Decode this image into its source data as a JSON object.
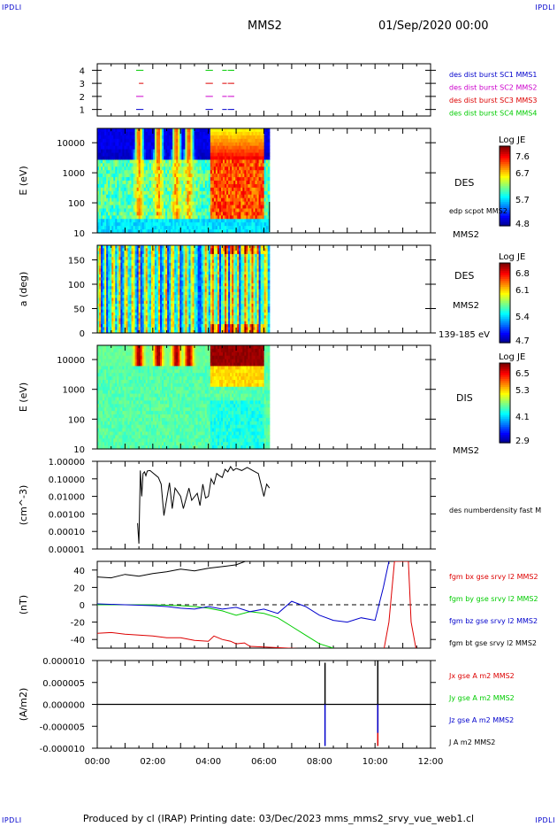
{
  "corner_label": "IPDLI",
  "header": {
    "spacecraft": "MMS2",
    "date": "01/Sep/2020 00:00"
  },
  "footer": "Produced by cl (IRAP)   Printing date: 03/Dec/2023   mms_mms2_srvy_vue_web1.cl",
  "colors": {
    "c1": "#0000cc",
    "c2": "#cc00cc",
    "c3": "#dd0000",
    "c4": "#00cc00",
    "black": "#000000"
  },
  "chart_data": [
    {
      "type": "line",
      "name": "burst-availability",
      "ylim": [
        0.5,
        4.5
      ],
      "yticks": [
        "1",
        "2",
        "3",
        "4"
      ],
      "legend": [
        {
          "label": "des dist burst SC1 MMS1",
          "color": "#0000cc"
        },
        {
          "label": "des dist burst SC2 MMS2",
          "color": "#cc00cc"
        },
        {
          "label": "des dist burst SC3 MMS3",
          "color": "#dd0000"
        },
        {
          "label": "des dist burst SC4 MMS4",
          "color": "#00cc00"
        }
      ],
      "segments": [
        {
          "level": 4,
          "color": "#00cc00",
          "spans": [
            [
              1.4,
              1.6
            ],
            [
              3.9,
              4.1
            ],
            [
              4.5,
              4.6
            ],
            [
              4.7,
              4.8
            ],
            [
              4.85,
              4.87
            ]
          ]
        },
        {
          "level": 3,
          "color": "#dd0000",
          "spans": [
            [
              1.5,
              1.6
            ],
            [
              3.9,
              4.1
            ],
            [
              4.5,
              4.6
            ],
            [
              4.7,
              4.8
            ],
            [
              4.85,
              4.87
            ]
          ]
        },
        {
          "level": 2,
          "color": "#cc00cc",
          "spans": [
            [
              1.4,
              1.6
            ],
            [
              3.9,
              4.1
            ],
            [
              4.5,
              4.6
            ],
            [
              4.7,
              4.8
            ],
            [
              4.85,
              4.87
            ]
          ]
        },
        {
          "level": 1,
          "color": "#0000cc",
          "spans": [
            [
              1.4,
              1.6
            ],
            [
              3.9,
              4.1
            ],
            [
              4.5,
              4.6
            ],
            [
              4.7,
              4.8
            ],
            [
              4.85,
              4.87
            ]
          ]
        }
      ]
    },
    {
      "type": "heatmap",
      "name": "des-energy-spectrogram",
      "ylabel": "E (eV)",
      "scale": "log",
      "ylim": [
        10,
        30000
      ],
      "yticks": [
        "10",
        "100",
        "1000",
        "10000"
      ],
      "right_labels": [
        "DES",
        "edp scpot MMS2",
        "MMS2"
      ],
      "colorbar": {
        "title": "Log JE",
        "ticks": [
          "7.6",
          "6.7",
          "5.7",
          "4.8"
        ]
      },
      "xlim_hours": [
        0,
        6.2
      ]
    },
    {
      "type": "heatmap",
      "name": "des-pitch-angle",
      "ylabel": "a (deg)",
      "ylim": [
        0,
        180
      ],
      "yticks": [
        "0",
        "50",
        "100",
        "150"
      ],
      "right_labels": [
        "DES",
        "MMS2",
        "139-185 eV"
      ],
      "colorbar": {
        "title": "Log JE",
        "ticks": [
          "6.8",
          "6.1",
          "5.4",
          "4.7"
        ]
      },
      "xlim_hours": [
        0,
        6.2
      ]
    },
    {
      "type": "heatmap",
      "name": "dis-energy-spectrogram",
      "ylabel": "E (eV)",
      "scale": "log",
      "ylim": [
        10,
        30000
      ],
      "yticks": [
        "10",
        "100",
        "1000",
        "10000"
      ],
      "right_labels": [
        "DIS",
        "MMS2"
      ],
      "colorbar": {
        "title": "Log JE",
        "ticks": [
          "6.5",
          "5.3",
          "4.1",
          "2.9"
        ]
      },
      "xlim_hours": [
        0,
        6.2
      ]
    },
    {
      "type": "line",
      "name": "electron-density",
      "ylabel": "(cm^-3)",
      "scale": "log",
      "ylim": [
        1e-05,
        1
      ],
      "yticks": [
        "0.00001",
        "0.00010",
        "0.00100",
        "0.01000",
        "0.10000",
        "1.00000"
      ],
      "legend": [
        {
          "label": "des numberdensity fast M",
          "color": "#000000"
        }
      ],
      "x": [
        1.45,
        1.5,
        1.55,
        1.6,
        1.65,
        1.7,
        1.75,
        1.8,
        1.9,
        2.2,
        2.3,
        2.4,
        2.6,
        2.7,
        2.8,
        3.0,
        3.1,
        3.3,
        3.4,
        3.6,
        3.7,
        3.8,
        3.9,
        4.0,
        4.1,
        4.2,
        4.3,
        4.4,
        4.5,
        4.6,
        4.7,
        4.8,
        4.9,
        5.0,
        5.2,
        5.4,
        5.6,
        5.8,
        6.0,
        6.1,
        6.2
      ],
      "y": [
        0.0003,
        2e-05,
        0.3,
        0.01,
        0.2,
        0.25,
        0.15,
        0.28,
        0.3,
        0.12,
        0.05,
        0.0008,
        0.06,
        0.002,
        0.03,
        0.01,
        0.002,
        0.03,
        0.006,
        0.015,
        0.003,
        0.05,
        0.008,
        0.01,
        0.1,
        0.05,
        0.2,
        0.15,
        0.12,
        0.35,
        0.25,
        0.5,
        0.3,
        0.4,
        0.3,
        0.45,
        0.3,
        0.2,
        0.01,
        0.05,
        0.03
      ]
    },
    {
      "type": "line",
      "name": "magnetic-field",
      "ylabel": "(nT)",
      "ylim": [
        -50,
        50
      ],
      "yticks": [
        "-40",
        "-20",
        "0",
        "20",
        "40"
      ],
      "legend": [
        {
          "label": "fgm bx gse srvy l2 MMS2",
          "color": "#dd0000"
        },
        {
          "label": "fgm by gse srvy l2 MMS2",
          "color": "#00cc00"
        },
        {
          "label": "fgm bz gse srvy l2 MMS2",
          "color": "#0000cc"
        },
        {
          "label": "fgm bt gse srvy l2 MMS2",
          "color": "#000000"
        }
      ],
      "series": [
        {
          "name": "bx",
          "color": "#dd0000",
          "x": [
            0,
            0.5,
            1,
            1.5,
            2,
            2.5,
            3,
            3.5,
            4,
            4.2,
            4.5,
            4.8,
            5,
            5.3,
            5.5,
            10.3,
            10.5,
            10.7,
            11.2,
            11.3,
            11.5
          ],
          "y": [
            -33,
            -32,
            -34,
            -35,
            -36,
            -38,
            -38,
            -41,
            -42,
            -36,
            -40,
            -42,
            -45,
            -44,
            -48,
            -55,
            -20,
            50,
            50,
            -20,
            -55
          ]
        },
        {
          "name": "by",
          "color": "#00cc00",
          "x": [
            0,
            1,
            2,
            3,
            3.5,
            4,
            4.5,
            5,
            5.5,
            6,
            6.5,
            7,
            7.5,
            8,
            8.5
          ],
          "y": [
            0,
            0,
            0,
            -1,
            -2,
            -4,
            -7,
            -12,
            -8,
            -10,
            -15,
            -25,
            -35,
            -45,
            -50
          ]
        },
        {
          "name": "bz",
          "color": "#0000cc",
          "x": [
            0,
            1,
            2,
            2.5,
            3,
            3.5,
            4,
            4.5,
            5,
            5.5,
            6,
            6.5,
            7,
            7.5,
            8,
            8.5,
            9,
            9.5,
            10,
            10.3,
            10.5
          ],
          "y": [
            1,
            0,
            -1,
            -2,
            -4,
            -5,
            -2,
            -5,
            -3,
            -8,
            -5,
            -10,
            4,
            -2,
            -12,
            -18,
            -20,
            -15,
            -18,
            20,
            50
          ]
        },
        {
          "name": "bt",
          "color": "#000000",
          "x": [
            0,
            0.5,
            1,
            1.5,
            2,
            2.5,
            3,
            3.5,
            4,
            4.5,
            5,
            5.5
          ],
          "y": [
            32,
            31,
            35,
            33,
            36,
            38,
            41,
            39,
            42,
            44,
            46,
            52
          ]
        }
      ]
    },
    {
      "type": "line",
      "name": "current-density",
      "ylabel": "(A/m2)",
      "ylim": [
        -1e-05,
        1e-05
      ],
      "yticks": [
        "-0.000010",
        "-0.000005",
        "0.000000",
        "0.000005",
        "0.000010"
      ],
      "legend": [
        {
          "label": "Jx gse A m2 MMS2",
          "color": "#dd0000"
        },
        {
          "label": "Jy gse A m2 MMS2",
          "color": "#00cc00"
        },
        {
          "label": "Jz gse A m2 MMS2",
          "color": "#0000cc"
        },
        {
          "label": "J A m2 MMS2",
          "color": "#000000"
        }
      ],
      "spikes": [
        {
          "x": 8.2,
          "color": "#0000cc",
          "y": -9.5e-06
        },
        {
          "x": 8.2,
          "color": "#000000",
          "y": 9.5e-06
        },
        {
          "x": 10.1,
          "color": "#dd0000",
          "y": -9.5e-06
        },
        {
          "x": 10.1,
          "color": "#0000cc",
          "y": -6.5e-06
        },
        {
          "x": 10.1,
          "color": "#000000",
          "y": 1e-05
        }
      ]
    }
  ],
  "time_axis": {
    "ticks": [
      "00:00",
      "02:00",
      "04:00",
      "06:00",
      "08:00",
      "10:00",
      "12:00"
    ],
    "range_hours": [
      0,
      12
    ]
  }
}
